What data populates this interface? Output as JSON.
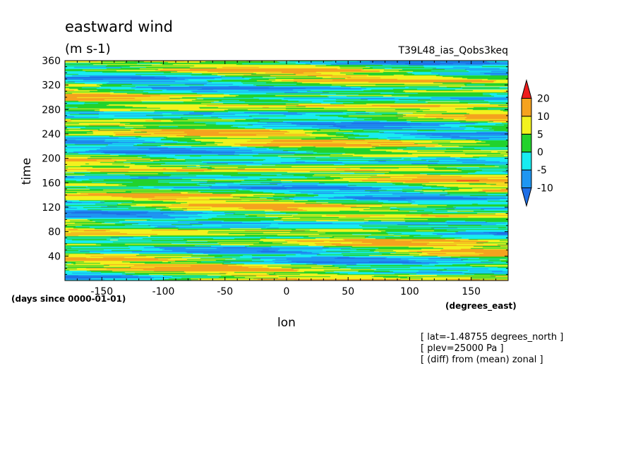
{
  "chart_data": {
    "type": "heatmap",
    "title": "eastward wind",
    "units": "(m s-1)",
    "run_label": "T39L48_ias_Qobs3keq",
    "xlabel": "lon",
    "x_units": "(degrees_east)",
    "ylabel": "time",
    "y_units": "(days since 0000-01-01)",
    "xlim": [
      -180,
      180
    ],
    "ylim": [
      0,
      360
    ],
    "x_ticks": [
      -150,
      -100,
      -50,
      0,
      50,
      100,
      150
    ],
    "y_ticks": [
      40,
      80,
      120,
      160,
      200,
      240,
      280,
      320,
      360
    ],
    "colorbar": {
      "levels": [
        -10,
        -5,
        0,
        5,
        10,
        20
      ],
      "colors": [
        "#1f6fe6",
        "#1e96f2",
        "#18ecf0",
        "#22d22c",
        "#f2f21e",
        "#f5a21e",
        "#ee1c1c"
      ]
    },
    "notes": [
      "[ lat=-1.48755 degrees_north ]",
      "[ plev=25000 Pa ]",
      "[ (diff) from (mean) zonal ]"
    ]
  }
}
